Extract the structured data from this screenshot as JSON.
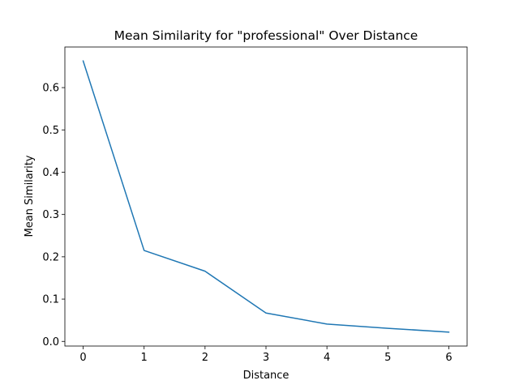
{
  "chart_data": {
    "type": "line",
    "title": "Mean Similarity for \"professional\" Over Distance",
    "xlabel": "Distance",
    "ylabel": "Mean Similarity",
    "xlim": [
      -0.3,
      6.3
    ],
    "ylim": [
      -0.011,
      0.696
    ],
    "xticks": [
      0,
      1,
      2,
      3,
      4,
      5,
      6
    ],
    "yticks": [
      0.0,
      0.1,
      0.2,
      0.3,
      0.4,
      0.5,
      0.6
    ],
    "ytick_labels": [
      "0.0",
      "0.1",
      "0.2",
      "0.3",
      "0.4",
      "0.5",
      "0.6"
    ],
    "xtick_labels": [
      "0",
      "1",
      "2",
      "3",
      "4",
      "5",
      "6"
    ],
    "grid": false,
    "series": [
      {
        "color": "#1f77b4",
        "x": [
          0,
          1,
          2,
          3,
          4,
          5,
          6
        ],
        "y": [
          0.663,
          0.215,
          0.166,
          0.067,
          0.041,
          0.031,
          0.022
        ]
      }
    ]
  }
}
